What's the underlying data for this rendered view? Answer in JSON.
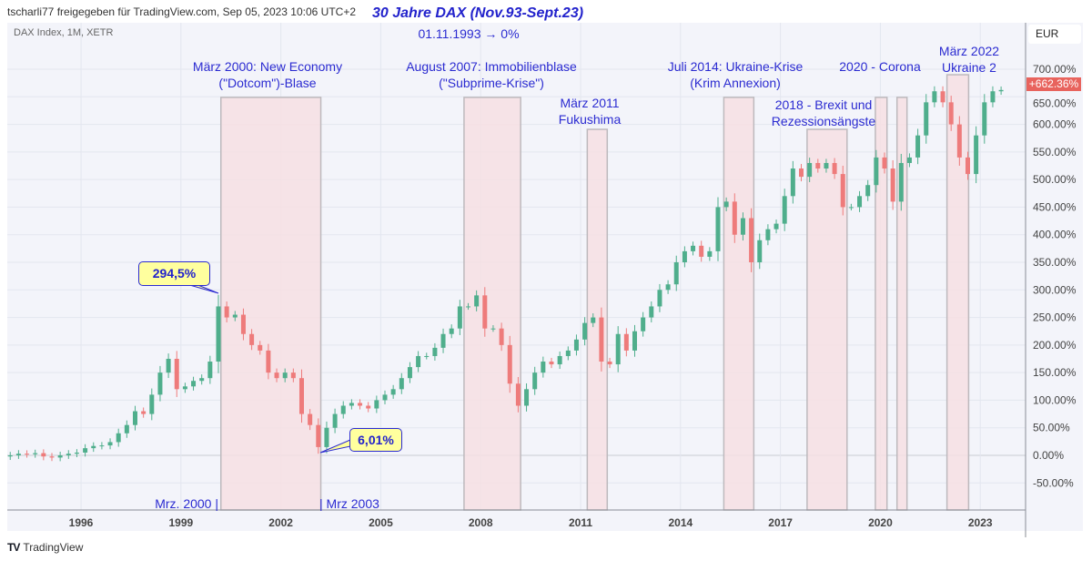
{
  "header": {
    "share_text": "tscharli77 freigegeben für TradingView.com, Sep 05, 2023 10:06 UTC+2",
    "title": "30 Jahre DAX (Nov.93-Sept.23)"
  },
  "symbol_info": "DAX Index, 1M, XETR",
  "start_note": "01.11.1993 → 0%",
  "currency": "EUR",
  "footer": {
    "logo": "TV",
    "brand": "TradingView"
  },
  "chart_data": {
    "type": "candlestick",
    "y_unit": "%",
    "ylim": [
      -100,
      750
    ],
    "y_ticks": [
      "700.00%",
      "650.00%",
      "600.00%",
      "550.00%",
      "500.00%",
      "450.00%",
      "400.00%",
      "350.00%",
      "300.00%",
      "250.00%",
      "200.00%",
      "150.00%",
      "100.00%",
      "50.00%",
      "0.00%",
      "-50.00%"
    ],
    "x_ticks": [
      "1996",
      "1999",
      "2002",
      "2005",
      "2008",
      "2011",
      "2014",
      "2017",
      "2020",
      "2023"
    ],
    "grid": true,
    "last_value_label": "+662.36%",
    "colors": {
      "up": "#4fae8c",
      "down": "#ee7b7b",
      "band": "#f6dfe3",
      "annotation": "#2b2bd1",
      "last": "#e8635d"
    },
    "closes": [
      [
        "1993-11",
        0
      ],
      [
        "1994-02",
        3
      ],
      [
        "1994-05",
        2
      ],
      [
        "1994-08",
        4
      ],
      [
        "1994-11",
        -2
      ],
      [
        "1995-02",
        -4
      ],
      [
        "1995-05",
        0
      ],
      [
        "1995-08",
        3
      ],
      [
        "1995-11",
        5
      ],
      [
        "1996-02",
        13
      ],
      [
        "1996-05",
        17
      ],
      [
        "1996-08",
        18
      ],
      [
        "1996-11",
        24
      ],
      [
        "1997-02",
        40
      ],
      [
        "1997-05",
        55
      ],
      [
        "1997-08",
        80
      ],
      [
        "1997-11",
        75
      ],
      [
        "1998-02",
        110
      ],
      [
        "1998-05",
        150
      ],
      [
        "1998-08",
        175
      ],
      [
        "1998-11",
        120
      ],
      [
        "1999-02",
        125
      ],
      [
        "1999-05",
        135
      ],
      [
        "1999-08",
        140
      ],
      [
        "1999-11",
        170
      ],
      [
        "2000-02",
        270
      ],
      [
        "2000-05",
        250
      ],
      [
        "2000-08",
        255
      ],
      [
        "2000-11",
        220
      ],
      [
        "2001-02",
        200
      ],
      [
        "2001-05",
        190
      ],
      [
        "2001-08",
        150
      ],
      [
        "2001-11",
        140
      ],
      [
        "2002-02",
        150
      ],
      [
        "2002-05",
        140
      ],
      [
        "2002-08",
        75
      ],
      [
        "2002-11",
        55
      ],
      [
        "2003-02",
        15
      ],
      [
        "2003-05",
        50
      ],
      [
        "2003-08",
        75
      ],
      [
        "2003-11",
        90
      ],
      [
        "2004-02",
        95
      ],
      [
        "2004-05",
        90
      ],
      [
        "2004-08",
        85
      ],
      [
        "2004-11",
        100
      ],
      [
        "2005-02",
        110
      ],
      [
        "2005-05",
        120
      ],
      [
        "2005-08",
        140
      ],
      [
        "2005-11",
        160
      ],
      [
        "2006-02",
        180
      ],
      [
        "2006-05",
        180
      ],
      [
        "2006-08",
        195
      ],
      [
        "2006-11",
        220
      ],
      [
        "2007-02",
        230
      ],
      [
        "2007-05",
        270
      ],
      [
        "2007-08",
        270
      ],
      [
        "2007-11",
        290
      ],
      [
        "2008-02",
        230
      ],
      [
        "2008-05",
        230
      ],
      [
        "2008-08",
        200
      ],
      [
        "2008-11",
        130
      ],
      [
        "2009-02",
        90
      ],
      [
        "2009-05",
        120
      ],
      [
        "2009-08",
        150
      ],
      [
        "2009-11",
        170
      ],
      [
        "2010-02",
        165
      ],
      [
        "2010-05",
        180
      ],
      [
        "2010-08",
        190
      ],
      [
        "2010-11",
        210
      ],
      [
        "2011-02",
        240
      ],
      [
        "2011-05",
        250
      ],
      [
        "2011-08",
        170
      ],
      [
        "2011-11",
        165
      ],
      [
        "2012-02",
        220
      ],
      [
        "2012-05",
        190
      ],
      [
        "2012-08",
        225
      ],
      [
        "2012-11",
        250
      ],
      [
        "2013-02",
        270
      ],
      [
        "2013-05",
        300
      ],
      [
        "2013-08",
        310
      ],
      [
        "2013-11",
        350
      ],
      [
        "2014-02",
        370
      ],
      [
        "2014-05",
        380
      ],
      [
        "2014-08",
        360
      ],
      [
        "2014-11",
        370
      ],
      [
        "2015-02",
        450
      ],
      [
        "2015-05",
        460
      ],
      [
        "2015-08",
        400
      ],
      [
        "2015-11",
        430
      ],
      [
        "2016-02",
        350
      ],
      [
        "2016-05",
        390
      ],
      [
        "2016-08",
        410
      ],
      [
        "2016-11",
        420
      ],
      [
        "2017-02",
        470
      ],
      [
        "2017-05",
        520
      ],
      [
        "2017-08",
        505
      ],
      [
        "2017-11",
        530
      ],
      [
        "2018-02",
        520
      ],
      [
        "2018-05",
        530
      ],
      [
        "2018-08",
        510
      ],
      [
        "2018-11",
        450
      ],
      [
        "2019-02",
        450
      ],
      [
        "2019-05",
        470
      ],
      [
        "2019-08",
        490
      ],
      [
        "2019-11",
        540
      ],
      [
        "2020-02",
        520
      ],
      [
        "2020-05",
        460
      ],
      [
        "2020-08",
        530
      ],
      [
        "2020-11",
        540
      ],
      [
        "2021-02",
        580
      ],
      [
        "2021-05",
        640
      ],
      [
        "2021-08",
        660
      ],
      [
        "2021-11",
        640
      ],
      [
        "2022-02",
        600
      ],
      [
        "2022-05",
        540
      ],
      [
        "2022-08",
        510
      ],
      [
        "2022-11",
        580
      ],
      [
        "2023-02",
        640
      ],
      [
        "2023-05",
        660
      ],
      [
        "2023-08",
        662.36
      ]
    ],
    "bands": [
      {
        "from": 2000.2,
        "to": 2003.2,
        "top": 649
      },
      {
        "from": 2007.5,
        "to": 2009.2,
        "top": 649
      },
      {
        "from": 2011.2,
        "to": 2011.8,
        "top": 591
      },
      {
        "from": 2015.3,
        "to": 2016.2,
        "top": 649
      },
      {
        "from": 2017.8,
        "to": 2019.0,
        "top": 591
      },
      {
        "from": 2019.85,
        "to": 2020.2,
        "top": 649
      },
      {
        "from": 2020.5,
        "to": 2020.8,
        "top": 649
      },
      {
        "from": 2022.0,
        "to": 2022.65,
        "top": 690
      }
    ],
    "annotations": [
      {
        "lines": [
          "März 2000: New Economy",
          "(\"Dotcom\")-Blase"
        ]
      },
      {
        "lines": [
          "August 2007: Immobilienblase",
          "(\"Subprime-Krise\")"
        ]
      },
      {
        "lines": [
          "März 2011",
          "Fukushima"
        ]
      },
      {
        "lines": [
          "Juli 2014: Ukraine-Krise",
          "(Krim Annexion)"
        ]
      },
      {
        "lines": [
          "2018 - Brexit und",
          "Rezessionsängste"
        ]
      },
      {
        "lines": [
          "2020 - Corona"
        ]
      },
      {
        "lines": [
          "März 2022",
          "Ukraine 2"
        ]
      }
    ],
    "callouts": {
      "peak": "294,5%",
      "low": "6,01%"
    },
    "range_marks": {
      "start": "Mrz. 2000 |",
      "end": "| Mrz 2003"
    }
  }
}
